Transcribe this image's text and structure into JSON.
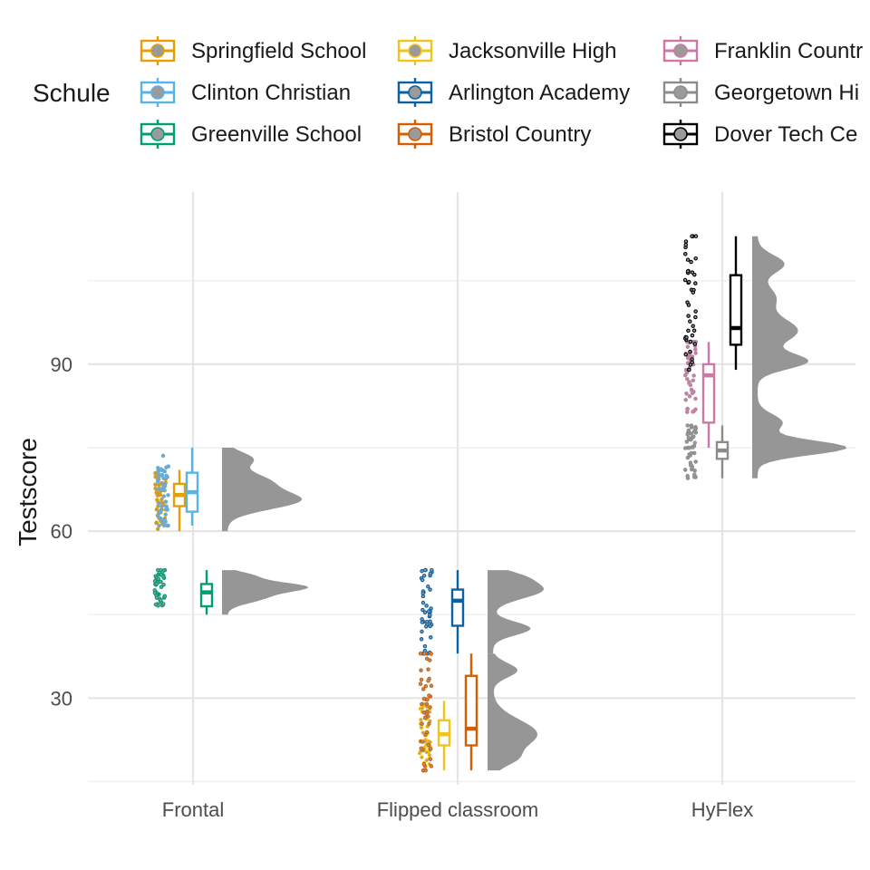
{
  "chart_data": {
    "type": "raincloud",
    "title": "",
    "xlabel": "",
    "ylabel": "Testscore",
    "ylim": [
      12,
      116
    ],
    "yticks": [
      30,
      60,
      90
    ],
    "y_minor_gridlines": [
      15,
      45,
      75,
      105
    ],
    "grid": true,
    "legend_title": "Schule",
    "legend_position": "top",
    "categories": [
      "Frontal",
      "Flipped classroom",
      "HyFlex"
    ],
    "series": [
      {
        "name": "Springfield School",
        "color": "#E69F00",
        "category": "Frontal",
        "box": {
          "min": 60,
          "q1": 64.5,
          "median": 66.5,
          "q3": 68.5,
          "max": 71
        },
        "points_range": [
          60,
          71
        ],
        "density_peaks": [
          65.5
        ]
      },
      {
        "name": "Clinton Christian",
        "color": "#56B4E9",
        "category": "Frontal",
        "box": {
          "min": 61,
          "q1": 63.5,
          "median": 67,
          "q3": 70.5,
          "max": 75
        },
        "points_range": [
          61,
          75
        ],
        "density_peaks": [
          66
        ]
      },
      {
        "name": "Greenville School",
        "color": "#009E73",
        "category": "Frontal",
        "box": {
          "min": 45,
          "q1": 46.5,
          "median": 49,
          "q3": 50.5,
          "max": 53
        },
        "points_range": [
          45,
          53
        ],
        "density_peaks": [
          50
        ]
      },
      {
        "name": "Jacksonville High",
        "color": "#F0C419",
        "category": "Flipped classroom",
        "box": {
          "min": 17,
          "q1": 21.5,
          "median": 23.5,
          "q3": 26,
          "max": 29.5
        },
        "points_range": [
          17,
          29.5
        ],
        "density_peaks": [
          23.5
        ]
      },
      {
        "name": "Arlington Academy",
        "color": "#0A62A5",
        "category": "Flipped classroom",
        "box": {
          "min": 38,
          "q1": 43,
          "median": 47.5,
          "q3": 49.5,
          "max": 53
        },
        "points_range": [
          38,
          53
        ],
        "density_peaks": [
          49.5,
          42.5
        ]
      },
      {
        "name": "Bristol Country",
        "color": "#D55E00",
        "category": "Flipped classroom",
        "box": {
          "min": 17,
          "q1": 21.5,
          "median": 24.5,
          "q3": 34,
          "max": 38
        },
        "points_range": [
          17,
          38
        ],
        "density_peaks": [
          24,
          35
        ]
      },
      {
        "name": "Franklin Country",
        "color": "#CC79A7",
        "category": "HyFlex",
        "box": {
          "min": 75,
          "q1": 79.5,
          "median": 88,
          "q3": 90,
          "max": 94
        },
        "points_range": [
          75,
          94
        ],
        "density_peaks": [
          90
        ]
      },
      {
        "name": "Georgetown High",
        "color": "#8C8C8C",
        "category": "HyFlex",
        "box": {
          "min": 69.5,
          "q1": 73,
          "median": 74.5,
          "q3": 76,
          "max": 79
        },
        "points_range": [
          69.5,
          79
        ],
        "density_peaks": [
          75
        ]
      },
      {
        "name": "Dover Tech Center",
        "color": "#000000",
        "category": "HyFlex",
        "box": {
          "min": 89,
          "q1": 93.5,
          "median": 96.5,
          "q3": 106,
          "max": 113
        },
        "points_range": [
          89,
          113
        ],
        "density_peaks": [
          108,
          97
        ]
      }
    ],
    "legend_labels_shown": [
      "Springfield School",
      "Clinton Christian",
      "Greenville School",
      "Jacksonville High",
      "Arlington Academy",
      "Bristol Country",
      "Franklin Countr",
      "Georgetown Hi",
      "Dover Tech Ce"
    ]
  }
}
